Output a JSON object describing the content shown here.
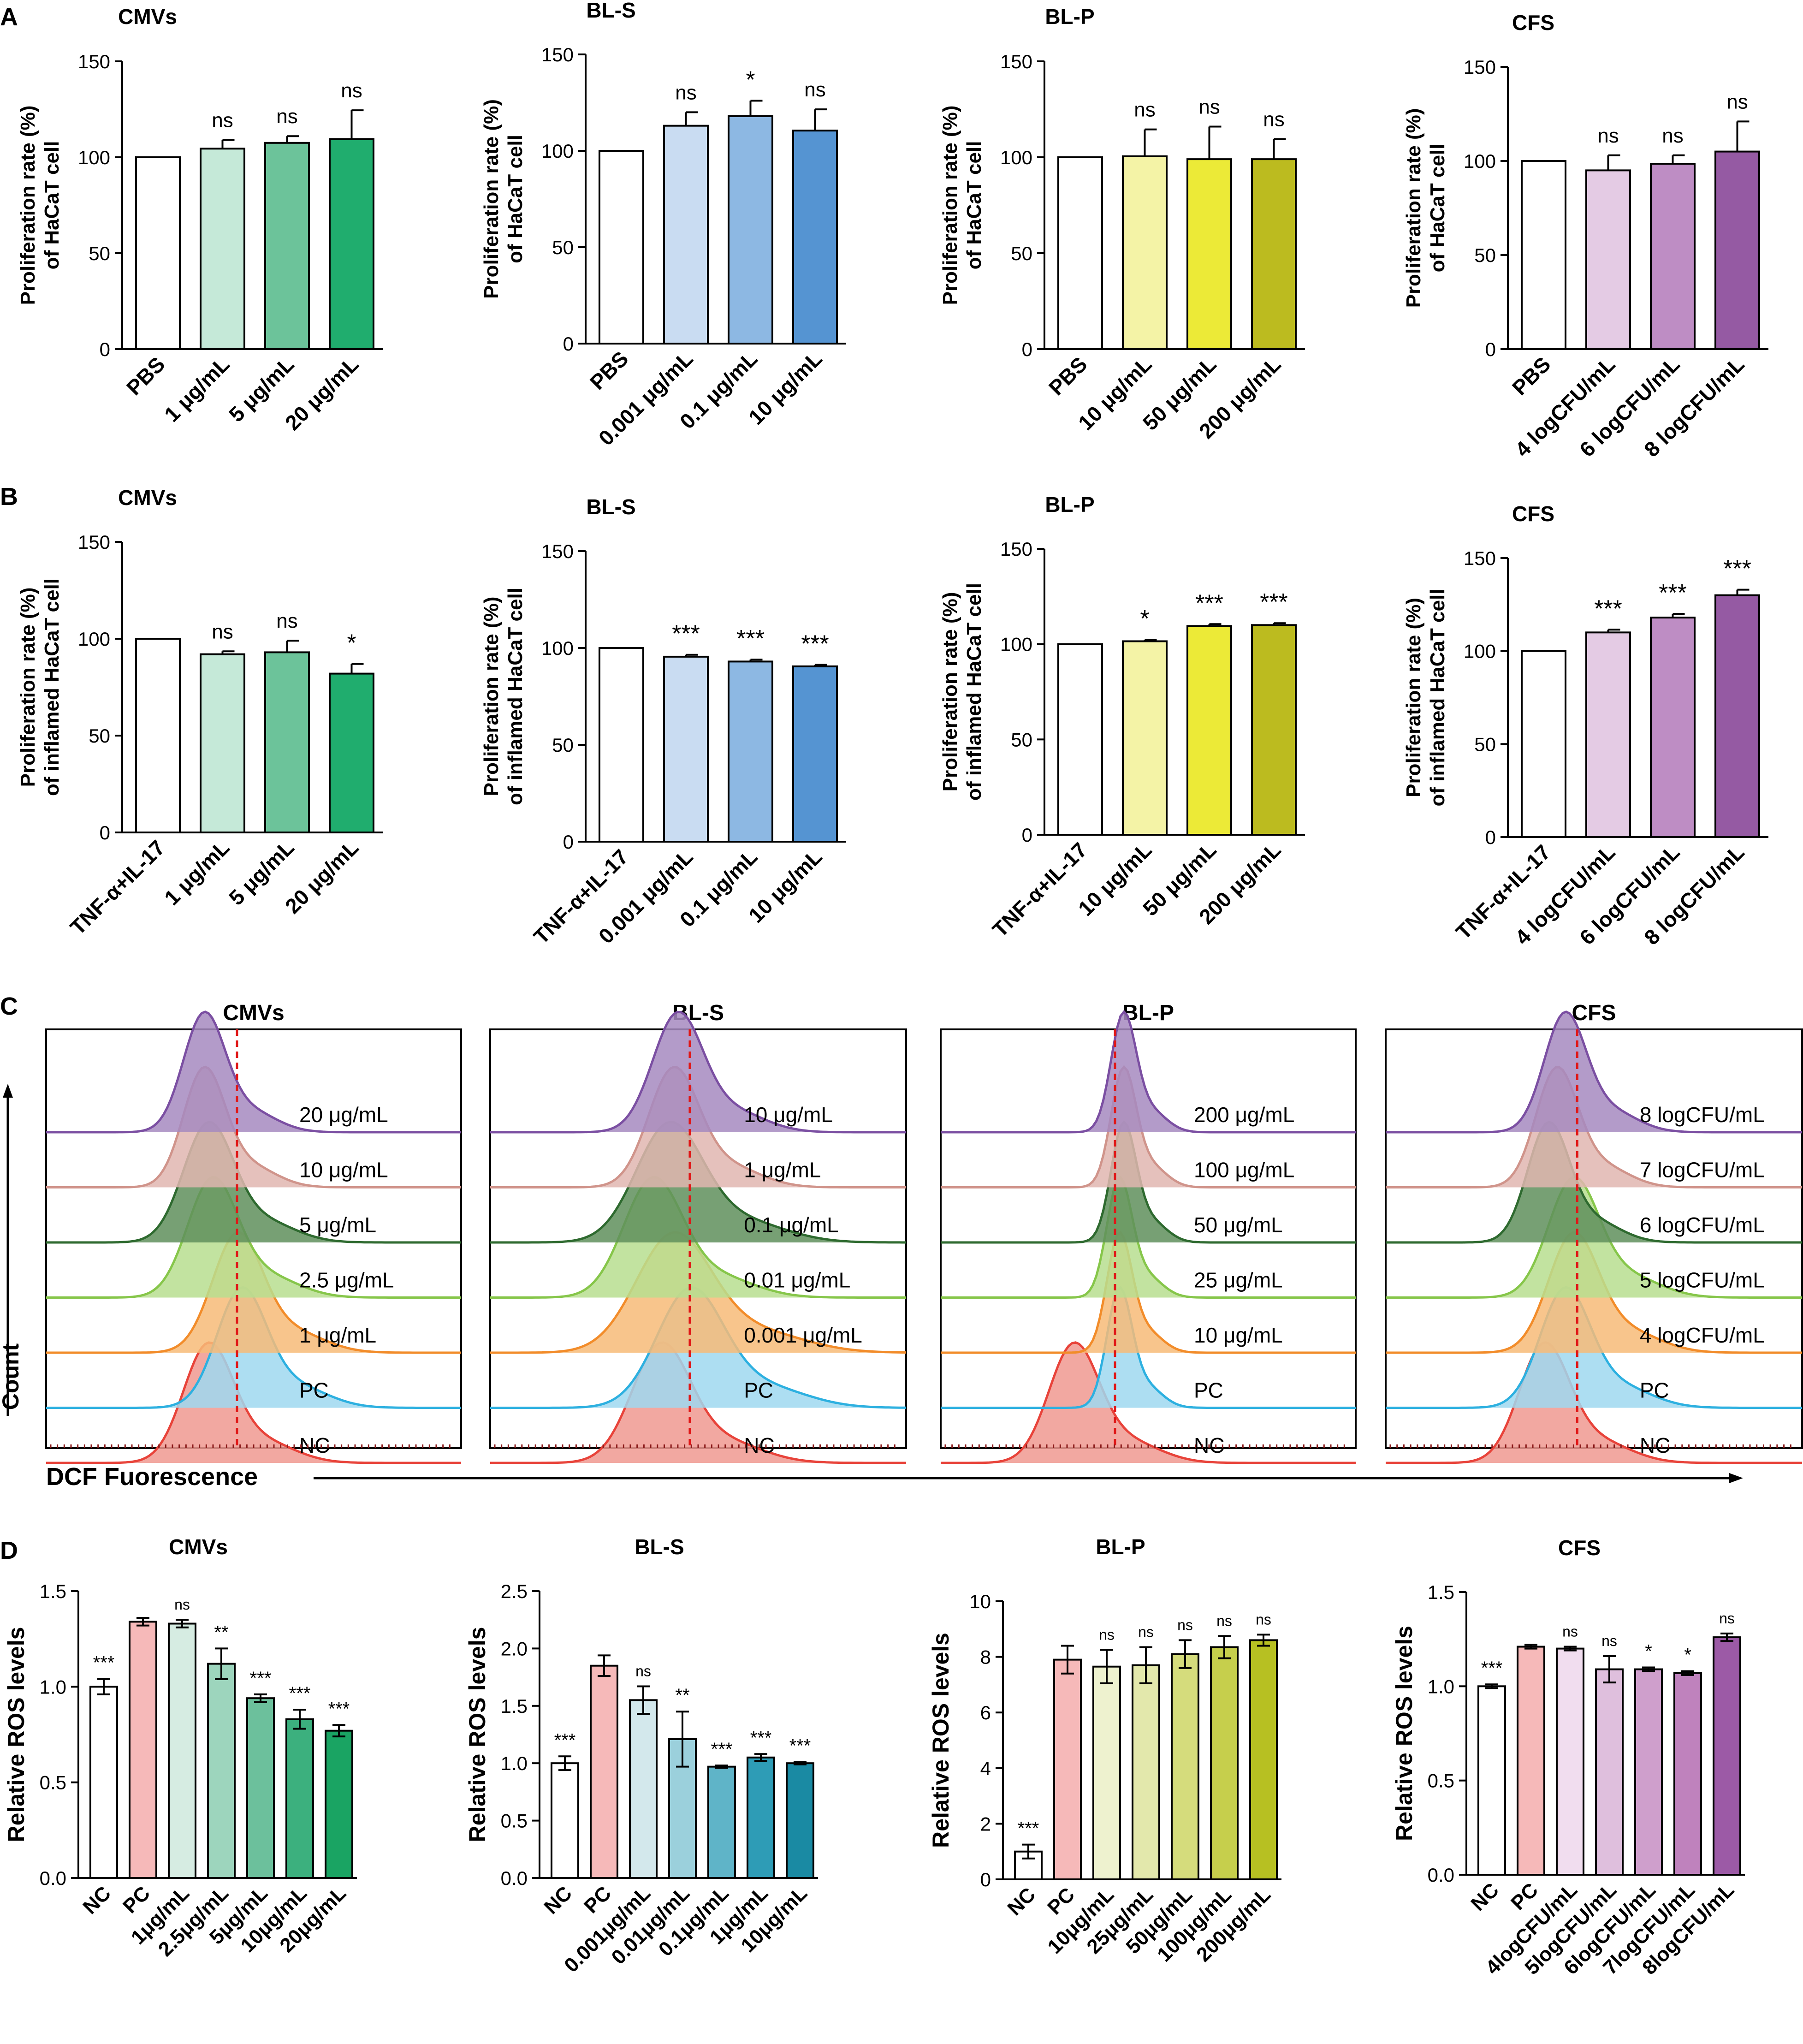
{
  "panel_letters": [
    "A",
    "B",
    "C",
    "D"
  ],
  "colors": {
    "CMVs": [
      "#ffffff",
      "#c5e9d8",
      "#6cc39a",
      "#20ad6e"
    ],
    "BL-S": [
      "#ffffff",
      "#c9dcf2",
      "#8db8e3",
      "#5594d2"
    ],
    "BL-P": [
      "#ffffff",
      "#f4f3a6",
      "#ecea37",
      "#bcbb1f"
    ],
    "CFS": [
      "#ffffff",
      "#e4cbe4",
      "#be8dc4",
      "#955aa3"
    ],
    "D_CMVs": [
      "#ffffff",
      "#f6b9b9",
      "#d6ece2",
      "#9dd5bd",
      "#6cc09c",
      "#3cb07e",
      "#1aa463"
    ],
    "D_BL-S": [
      "#ffffff",
      "#f6b9b9",
      "#d3e8ec",
      "#9bd0dc",
      "#5fb4c8",
      "#2e9cb6",
      "#1a8aa3"
    ],
    "D_BL-P": [
      "#ffffff",
      "#f6b9b9",
      "#eef2cf",
      "#e3e8ac",
      "#d5dc7c",
      "#c6cf4c",
      "#b7c022"
    ],
    "D_CFS": [
      "#ffffff",
      "#f6b9b9",
      "#f1ddef",
      "#dfbfdd",
      "#cf9fcc",
      "#bf82bd",
      "#9c5aa6"
    ],
    "flow": [
      "#7b4fa2",
      "#d0948b",
      "#2e6a2f",
      "#86c64a",
      "#f28c2a",
      "#2db0e0",
      "#e8433a"
    ],
    "flow_fill": [
      "#a689c0",
      "#e0b6b0",
      "#5f8f5c",
      "#b7de8f",
      "#f7bb78",
      "#9fd8f0",
      "#f09990"
    ],
    "dashed": "#e01818"
  },
  "chart_data": [
    {
      "panel": "A",
      "type": "bar",
      "title": "CMVs",
      "ylabel": [
        "Proliferation rate (%)",
        "of HaCaT cell"
      ],
      "ylim": [
        0,
        150
      ],
      "yticks": [
        0,
        50,
        100,
        150
      ],
      "categories": [
        "PBS",
        "1 μg/mL",
        "5 μg/mL",
        "20 μg/mL"
      ],
      "values": [
        100,
        104.5,
        107.5,
        109.5
      ],
      "errors": [
        0,
        4.5,
        3.5,
        15
      ],
      "significance": [
        "",
        "ns",
        "ns",
        "ns"
      ],
      "palette": "CMVs"
    },
    {
      "panel": "A",
      "type": "bar",
      "title": "BL-S",
      "ylabel": [
        "Proliferation rate (%)",
        "of HaCaT cell"
      ],
      "ylim": [
        0,
        150
      ],
      "yticks": [
        0,
        50,
        100,
        150
      ],
      "categories": [
        "PBS",
        "0.001 μg/mL",
        "0.1 μg/mL",
        "10 μg/mL"
      ],
      "values": [
        100,
        113,
        118,
        110.5
      ],
      "errors": [
        0,
        7,
        8,
        11
      ],
      "significance": [
        "",
        "ns",
        "*",
        "ns"
      ],
      "palette": "BL-S"
    },
    {
      "panel": "A",
      "type": "bar",
      "title": "BL-P",
      "ylabel": [
        "Proliferation rate (%)",
        "of HaCaT cell"
      ],
      "ylim": [
        0,
        150
      ],
      "yticks": [
        0,
        50,
        100,
        150
      ],
      "categories": [
        "PBS",
        "10 μg/mL",
        "50 μg/mL",
        "200 μg/mL"
      ],
      "values": [
        100,
        100.5,
        99,
        99
      ],
      "errors": [
        0,
        14,
        17,
        10.5
      ],
      "significance": [
        "",
        "ns",
        "ns",
        "ns"
      ],
      "palette": "BL-P"
    },
    {
      "panel": "A",
      "type": "bar",
      "title": "CFS",
      "ylabel": [
        "Proliferation rate (%)",
        "of HaCaT cell"
      ],
      "ylim": [
        0,
        150
      ],
      "yticks": [
        0,
        50,
        100,
        150
      ],
      "categories": [
        "PBS",
        "4 logCFU/mL",
        "6 logCFU/mL",
        "8 logCFU/mL"
      ],
      "values": [
        100,
        95,
        98.5,
        105
      ],
      "errors": [
        0,
        8,
        4.5,
        16
      ],
      "significance": [
        "",
        "ns",
        "ns",
        "ns"
      ],
      "palette": "CFS"
    },
    {
      "panel": "B",
      "type": "bar",
      "title": "CMVs",
      "ylabel": [
        "Proliferation rate (%)",
        "of inflamed HaCaT cell"
      ],
      "ylim": [
        0,
        150
      ],
      "yticks": [
        0,
        50,
        100,
        150
      ],
      "categories": [
        "TNF-α+IL-17",
        "1 μg/mL",
        "5 μg/mL",
        "20 μg/mL"
      ],
      "values": [
        100,
        92,
        93,
        82
      ],
      "errors": [
        0,
        1.5,
        6,
        5
      ],
      "significance": [
        "",
        "ns",
        "ns",
        "*"
      ],
      "palette": "CMVs"
    },
    {
      "panel": "B",
      "type": "bar",
      "title": "BL-S",
      "ylabel": [
        "Proliferation rate (%)",
        "of inflamed HaCaT cell"
      ],
      "ylim": [
        0,
        150
      ],
      "yticks": [
        0,
        50,
        100,
        150
      ],
      "categories": [
        "TNF-α+IL-17",
        "0.001 μg/mL",
        "0.1 μg/mL",
        "10 μg/mL"
      ],
      "values": [
        100,
        95.5,
        93,
        90.5
      ],
      "errors": [
        0,
        1,
        1,
        0.8
      ],
      "significance": [
        "",
        "***",
        "***",
        "***"
      ],
      "palette": "BL-S"
    },
    {
      "panel": "B",
      "type": "bar",
      "title": "BL-P",
      "ylabel": [
        "Proliferation rate (%)",
        "of inflamed HaCaT cell"
      ],
      "ylim": [
        0,
        150
      ],
      "yticks": [
        0,
        50,
        100,
        150
      ],
      "categories": [
        "TNF-α+IL-17",
        "10 μg/mL",
        "50 μg/mL",
        "200 μg/mL"
      ],
      "values": [
        100,
        101.5,
        109.5,
        110
      ],
      "errors": [
        0,
        0.8,
        1,
        1
      ],
      "significance": [
        "",
        "*",
        "***",
        "***"
      ],
      "palette": "BL-P"
    },
    {
      "panel": "B",
      "type": "bar",
      "title": "CFS",
      "ylabel": [
        "Proliferation rate (%)",
        "of inflamed HaCaT cell"
      ],
      "ylim": [
        0,
        150
      ],
      "yticks": [
        0,
        50,
        100,
        150
      ],
      "categories": [
        "TNF-α+IL-17",
        "4 logCFU/mL",
        "6 logCFU/mL",
        "8 logCFU/mL"
      ],
      "values": [
        100,
        110,
        118,
        130
      ],
      "errors": [
        0,
        1.5,
        2,
        3
      ],
      "significance": [
        "",
        "***",
        "***",
        "***"
      ],
      "palette": "CFS"
    },
    {
      "panel": "C",
      "type": "area",
      "title": "CMVs",
      "labels": [
        "20 μg/mL",
        "10 μg/mL",
        "5 μg/mL",
        "2.5 μg/mL",
        "1 μg/mL",
        "PC",
        "NC"
      ],
      "peaks": [
        0.38,
        0.38,
        0.39,
        0.4,
        0.46,
        0.47,
        0.39
      ],
      "widths": [
        0.05,
        0.05,
        0.06,
        0.06,
        0.06,
        0.06,
        0.06
      ],
      "marker": 0.46
    },
    {
      "panel": "C",
      "type": "area",
      "title": "BL-S",
      "labels": [
        "10 μg/mL",
        "1 μg/mL",
        "0.1 μg/mL",
        "0.01 μg/mL",
        "0.001 μg/mL",
        "PC",
        "NC"
      ],
      "peaks": [
        0.45,
        0.44,
        0.43,
        0.39,
        0.44,
        0.48,
        0.41
      ],
      "widths": [
        0.06,
        0.06,
        0.08,
        0.07,
        0.09,
        0.08,
        0.07
      ],
      "marker": 0.48
    },
    {
      "panel": "C",
      "type": "area",
      "title": "BL-P",
      "labels": [
        "200 μg/mL",
        "100 μg/mL",
        "50 μg/mL",
        "25 μg/mL",
        "10 μg/mL",
        "PC",
        "NC"
      ],
      "peaks": [
        0.44,
        0.44,
        0.44,
        0.43,
        0.43,
        0.43,
        0.32
      ],
      "widths": [
        0.03,
        0.03,
        0.03,
        0.03,
        0.03,
        0.03,
        0.06
      ],
      "marker": 0.42
    },
    {
      "panel": "C",
      "type": "area",
      "title": "CFS",
      "labels": [
        "8 logCFU/mL",
        "7 logCFU/mL",
        "6 logCFU/mL",
        "5 logCFU/mL",
        "4 logCFU/mL",
        "PC",
        "NC"
      ],
      "peaks": [
        0.43,
        0.41,
        0.39,
        0.45,
        0.45,
        0.43,
        0.38
      ],
      "widths": [
        0.05,
        0.05,
        0.05,
        0.06,
        0.06,
        0.06,
        0.06
      ],
      "marker": 0.46
    },
    {
      "panel": "D",
      "type": "bar",
      "title": "CMVs",
      "ylabel": [
        "Relative ROS levels"
      ],
      "ylim": [
        0,
        1.5
      ],
      "yticks": [
        0.0,
        0.5,
        1.0,
        1.5
      ],
      "tick_format": 1,
      "categories": [
        "NC",
        "PC",
        "1μg/mL",
        "2.5μg/mL",
        "5μg/mL",
        "10μg/mL",
        "20μg/mL"
      ],
      "values": [
        1.0,
        1.34,
        1.33,
        1.12,
        0.94,
        0.83,
        0.77
      ],
      "errors": [
        0.04,
        0.02,
        0.02,
        0.08,
        0.02,
        0.05,
        0.03
      ],
      "significance": [
        "***",
        "",
        "ns",
        "**",
        "***",
        "***",
        "***"
      ],
      "palette": "D_CMVs"
    },
    {
      "panel": "D",
      "type": "bar",
      "title": "BL-S",
      "ylabel": [
        "Relative ROS levels"
      ],
      "ylim": [
        0,
        2.5
      ],
      "yticks": [
        0.0,
        0.5,
        1.0,
        1.5,
        2.0,
        2.5
      ],
      "tick_format": 1,
      "categories": [
        "NC",
        "PC",
        "0.001μg/mL",
        "0.01μg/mL",
        "0.1μg/mL",
        "1μg/mL",
        "10μg/mL"
      ],
      "values": [
        1.0,
        1.85,
        1.55,
        1.21,
        0.97,
        1.05,
        1.0
      ],
      "errors": [
        0.06,
        0.09,
        0.12,
        0.24,
        0.01,
        0.03,
        0.01
      ],
      "significance": [
        "***",
        "",
        "ns",
        "**",
        "***",
        "***",
        "***"
      ],
      "palette": "D_BL-S"
    },
    {
      "panel": "D",
      "type": "bar",
      "title": "BL-P",
      "ylabel": [
        "Relative ROS levels"
      ],
      "ylim": [
        0,
        10
      ],
      "yticks": [
        0,
        2,
        4,
        6,
        8,
        10
      ],
      "tick_format": 0,
      "categories": [
        "NC",
        "PC",
        "10μg/mL",
        "25μg/mL",
        "50μg/mL",
        "100μg/mL",
        "200μg/mL"
      ],
      "values": [
        1.0,
        7.9,
        7.65,
        7.7,
        8.1,
        8.35,
        8.6
      ],
      "errors": [
        0.25,
        0.5,
        0.6,
        0.65,
        0.5,
        0.4,
        0.2
      ],
      "significance": [
        "***",
        "",
        "ns",
        "ns",
        "ns",
        "ns",
        "ns"
      ],
      "palette": "D_BL-P"
    },
    {
      "panel": "D",
      "type": "bar",
      "title": "CFS",
      "ylabel": [
        "Relative ROS levels"
      ],
      "ylim": [
        0,
        1.5
      ],
      "yticks": [
        0.0,
        0.5,
        1.0,
        1.5
      ],
      "tick_format": 1,
      "categories": [
        "NC",
        "PC",
        "4logCFU/mL",
        "5logCFU/mL",
        "6logCFU/mL",
        "7logCFU/mL",
        "8logCFU/mL"
      ],
      "values": [
        1.0,
        1.21,
        1.2,
        1.09,
        1.09,
        1.07,
        1.26
      ],
      "errors": [
        0.01,
        0.01,
        0.01,
        0.07,
        0.01,
        0.01,
        0.02
      ],
      "significance": [
        "***",
        "",
        "ns",
        "ns",
        "*",
        "*",
        "ns"
      ],
      "palette": "D_CFS"
    }
  ],
  "flow_axis": {
    "ylabel": "Count",
    "xlabel": "DCF Fuorescence"
  }
}
